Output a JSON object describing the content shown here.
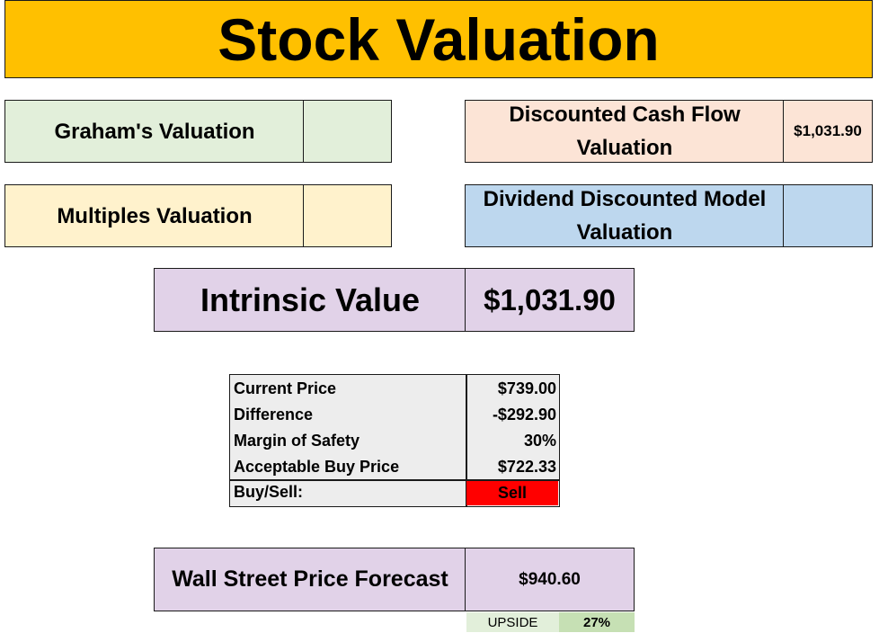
{
  "title": "Stock Valuation",
  "valuations": {
    "graham": {
      "label": "Graham's Valuation",
      "value": ""
    },
    "dcf": {
      "label_line1": "Discounted Cash Flow",
      "label_line2": "Valuation",
      "value": "$1,031.90"
    },
    "multiples": {
      "label": "Multiples Valuation",
      "value": ""
    },
    "ddm": {
      "label_line1": "Dividend Discounted Model",
      "label_line2": "Valuation",
      "value": ""
    }
  },
  "intrinsic": {
    "label": "Intrinsic Value",
    "value": "$1,031.90"
  },
  "summary": {
    "rows": [
      {
        "label": "Current Price",
        "value": "$739.00"
      },
      {
        "label": "Difference",
        "value": "-$292.90"
      },
      {
        "label": "Margin of Safety",
        "value": "30%"
      },
      {
        "label": "Acceptable Buy Price",
        "value": "$722.33"
      }
    ],
    "decision": {
      "label": "Buy/Sell:",
      "value": "Sell"
    }
  },
  "forecast": {
    "label": "Wall Street Price Forecast",
    "value": "$940.60"
  },
  "upside": {
    "label": "UPSIDE",
    "value": "27%"
  },
  "colors": {
    "title_bg": "#FFC000",
    "graham_bg": "#E2EFDA",
    "multiples_bg": "#FFF2CC",
    "dcf_bg": "#FCE4D6",
    "ddm_bg": "#BDD7EE",
    "intrinsic_bg": "#E1D2E8",
    "sell_bg": "#FF0000",
    "upside_bg": "#E2EFDA",
    "upside_value_bg": "#C6E0B4"
  }
}
